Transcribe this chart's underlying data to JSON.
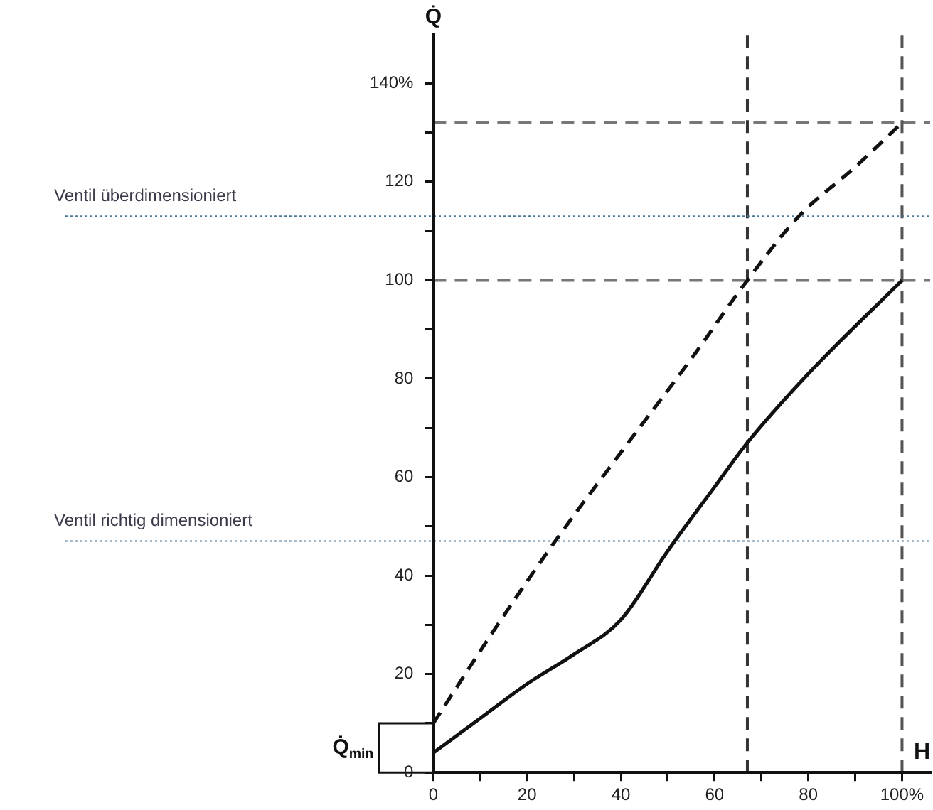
{
  "chart_data": {
    "type": "line",
    "xlabel": "H",
    "ylabel": "Q̇",
    "x": [
      0,
      10,
      20,
      30,
      40,
      50,
      60,
      67,
      80,
      100
    ],
    "series": [
      {
        "color": "#111111",
        "line_style": "dashed",
        "x": [
          0,
          13,
          26,
          40,
          55,
          67,
          78,
          90,
          100
        ],
        "values": [
          10,
          29,
          47,
          65,
          84,
          100,
          113,
          123,
          132
        ]
      },
      {
        "color": "#111111",
        "line_style": "solid",
        "values": [
          4,
          11,
          18,
          24,
          31,
          45,
          58,
          67,
          81,
          100
        ]
      }
    ],
    "xlim": [
      0,
      106
    ],
    "ylim": [
      0,
      150
    ],
    "xticks": [
      0,
      {
        "value": 10,
        "label": null
      },
      20,
      {
        "value": 30,
        "label": null
      },
      40,
      {
        "value": 50,
        "label": null
      },
      60,
      {
        "value": 70,
        "label": null
      },
      80,
      {
        "value": 90,
        "label": null
      },
      {
        "value": 100,
        "label": "100%"
      }
    ],
    "yticks": [
      0,
      {
        "value": 10,
        "label": null
      },
      20,
      {
        "value": 30,
        "label": null
      },
      40,
      {
        "value": 50,
        "label": null
      },
      60,
      {
        "value": 70,
        "label": null
      },
      80,
      {
        "value": 90,
        "label": null
      },
      100,
      {
        "value": 110,
        "label": null
      },
      120,
      {
        "value": 130,
        "label": null
      },
      {
        "value": 140,
        "label": "140%"
      }
    ],
    "ref_lines": [
      {
        "axis": "y",
        "value": 132,
        "color": "#777777",
        "line_style": "dashed"
      },
      {
        "axis": "y",
        "value": 100,
        "color": "#777777",
        "line_style": "dashed"
      },
      {
        "axis": "x",
        "value": 100,
        "color": "#555555",
        "line_style": "dashed"
      },
      {
        "axis": "x",
        "value": 67,
        "color": "#333333",
        "line_style": "dashed"
      },
      {
        "axis": "y",
        "value": 113,
        "label": "Ventil überdimensioniert",
        "color": "#4a7a9a",
        "line_style": "dotted"
      },
      {
        "axis": "y",
        "value": 47,
        "label": "Ventil richtig dimensioniert",
        "color": "#4a7a9a",
        "line_style": "dotted"
      }
    ],
    "annotations": [
      {
        "text": "Q̇$_{min}$",
        "x": 0,
        "y": 10
      }
    ],
    "grid": false,
    "legend": false,
    "marker": "none"
  }
}
